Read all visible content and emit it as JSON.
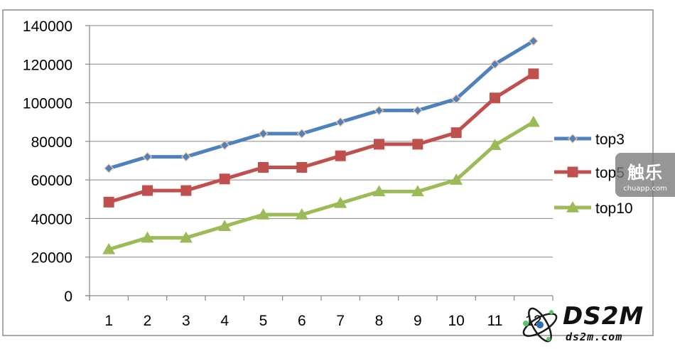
{
  "chart_data": {
    "type": "line",
    "title": "",
    "xlabel": "",
    "ylabel": "",
    "categories": [
      "1",
      "2",
      "3",
      "4",
      "5",
      "6",
      "7",
      "8",
      "9",
      "10",
      "11",
      "12"
    ],
    "ylim": [
      0,
      140000
    ],
    "yticks": [
      "0",
      "20000",
      "40000",
      "60000",
      "80000",
      "100000",
      "120000",
      "140000"
    ],
    "grid": "horizontal",
    "legend_position": "right",
    "series": [
      {
        "name": "top3",
        "color": "#4f81bd",
        "marker": "diamond",
        "values": [
          66000,
          72000,
          72000,
          78000,
          84000,
          84000,
          90000,
          96000,
          96000,
          102000,
          120000,
          132000
        ]
      },
      {
        "name": "top5",
        "color": "#c0504d",
        "marker": "square",
        "values": [
          48500,
          54500,
          54500,
          60500,
          66500,
          66500,
          72500,
          78500,
          78500,
          84500,
          102500,
          115000
        ]
      },
      {
        "name": "top10",
        "color": "#9bbb59",
        "marker": "triangle",
        "values": [
          24000,
          30000,
          30000,
          36000,
          42000,
          42000,
          48000,
          54000,
          54000,
          60000,
          78000,
          90000
        ]
      }
    ]
  },
  "watermark": {
    "main": "触乐",
    "sub": "chuapp.com"
  },
  "logo": {
    "name": "DS2M",
    "url": "ds2m.com"
  }
}
